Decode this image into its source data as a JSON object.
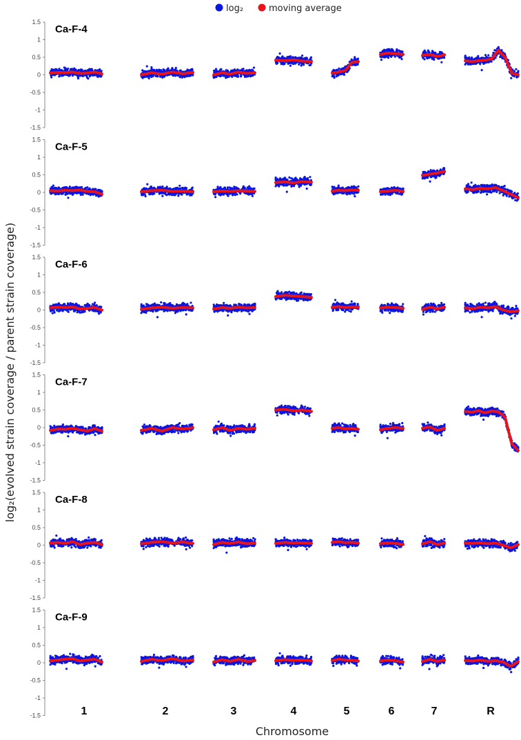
{
  "chart_data": {
    "type": "scatter",
    "xlabel": "Chromosome",
    "ylabel": "log₂(evolved strain coverage / parent strain coverage)",
    "ylim": [
      -1.5,
      1.5
    ],
    "yticks": [
      -1.5,
      -1,
      -0.5,
      0,
      0.5,
      1,
      1.5
    ],
    "yticklabels": [
      "-1.5",
      "-1",
      "-0.5",
      "0",
      "0.5",
      "1",
      "1.5"
    ],
    "grid": false,
    "legend_position": "top",
    "legend": [
      {
        "name": "log₂",
        "color": "#0b16e0"
      },
      {
        "name": "moving average",
        "color": "#e8141b"
      }
    ],
    "chromosomes": [
      "1",
      "2",
      "3",
      "4",
      "5",
      "6",
      "7",
      "R"
    ],
    "panels": [
      {
        "title": "Ca-F-4",
        "chromosomes": [
          {
            "chr": "1",
            "avg": [
              0.05,
              0.07,
              0.06,
              0.08,
              0.04,
              0.05,
              0.08,
              0.03
            ]
          },
          {
            "chr": "2",
            "avg": [
              0.0,
              0.06,
              0.02,
              0.08,
              0.03,
              0.07
            ]
          },
          {
            "chr": "3",
            "avg": [
              0.0,
              0.06,
              0.02,
              0.08,
              0.04,
              0.06
            ]
          },
          {
            "chr": "4",
            "avg": [
              0.42,
              0.4,
              0.43,
              0.39,
              0.38
            ]
          },
          {
            "chr": "5",
            "avg": [
              0.05,
              0.08,
              0.12,
              0.35,
              0.38
            ]
          },
          {
            "chr": "6",
            "avg": [
              0.58,
              0.62,
              0.6,
              0.58
            ]
          },
          {
            "chr": "7",
            "avg": [
              0.55,
              0.58,
              0.52,
              0.57
            ]
          },
          {
            "chr": "R",
            "avg": [
              0.4,
              0.38,
              0.4,
              0.42,
              0.45,
              0.7,
              0.5,
              0.05,
              0.0
            ]
          }
        ]
      },
      {
        "title": "Ca-F-5",
        "chromosomes": [
          {
            "chr": "1",
            "avg": [
              0.05,
              0.04,
              0.06,
              0.05,
              0.07,
              0.03,
              0.02,
              -0.05
            ]
          },
          {
            "chr": "2",
            "avg": [
              0.02,
              0.05,
              0.06,
              0.03,
              0.04,
              0.02
            ]
          },
          {
            "chr": "3",
            "avg": [
              0.02,
              0.04,
              0.03,
              0.05,
              0.04,
              0.03
            ]
          },
          {
            "chr": "4",
            "avg": [
              0.28,
              0.3,
              0.27,
              0.31,
              0.29
            ]
          },
          {
            "chr": "5",
            "avg": [
              0.04,
              0.06,
              0.05,
              0.07,
              0.06
            ]
          },
          {
            "chr": "6",
            "avg": [
              0.02,
              0.04,
              0.06,
              0.03
            ]
          },
          {
            "chr": "7",
            "avg": [
              0.48,
              0.52,
              0.55,
              0.6
            ]
          },
          {
            "chr": "R",
            "avg": [
              0.1,
              0.08,
              0.12,
              0.1,
              0.14,
              0.05,
              -0.05,
              -0.15
            ]
          }
        ]
      },
      {
        "title": "Ca-F-6",
        "chromosomes": [
          {
            "chr": "1",
            "avg": [
              0.06,
              0.08,
              0.07,
              0.09,
              0.03,
              0.05,
              0.07,
              0.0
            ]
          },
          {
            "chr": "2",
            "avg": [
              0.02,
              0.06,
              0.08,
              0.05,
              0.07,
              0.06
            ]
          },
          {
            "chr": "3",
            "avg": [
              0.03,
              0.07,
              0.05,
              0.08,
              0.06,
              0.07
            ]
          },
          {
            "chr": "4",
            "avg": [
              0.38,
              0.42,
              0.4,
              0.38,
              0.36
            ]
          },
          {
            "chr": "5",
            "avg": [
              0.08,
              0.1,
              0.07,
              0.09,
              0.08
            ]
          },
          {
            "chr": "6",
            "avg": [
              0.06,
              0.08,
              0.07,
              0.05
            ]
          },
          {
            "chr": "7",
            "avg": [
              0.02,
              0.08,
              0.04,
              0.08
            ]
          },
          {
            "chr": "R",
            "avg": [
              0.06,
              0.04,
              0.08,
              0.06,
              0.1,
              0.0,
              -0.05,
              -0.02
            ]
          }
        ]
      },
      {
        "title": "Ca-F-7",
        "chromosomes": [
          {
            "chr": "1",
            "avg": [
              -0.08,
              -0.04,
              -0.05,
              -0.02,
              -0.06,
              -0.1,
              -0.03,
              -0.1
            ]
          },
          {
            "chr": "2",
            "avg": [
              -0.08,
              -0.02,
              -0.1,
              0.0,
              -0.04,
              0.0
            ]
          },
          {
            "chr": "3",
            "avg": [
              -0.06,
              0.0,
              -0.08,
              -0.02,
              -0.05,
              -0.02
            ]
          },
          {
            "chr": "4",
            "avg": [
              0.5,
              0.52,
              0.48,
              0.5,
              0.46
            ]
          },
          {
            "chr": "5",
            "avg": [
              -0.02,
              0.0,
              -0.04,
              -0.02,
              -0.05
            ]
          },
          {
            "chr": "6",
            "avg": [
              -0.06,
              -0.02,
              0.0,
              -0.02
            ]
          },
          {
            "chr": "7",
            "avg": [
              -0.02,
              0.02,
              -0.08,
              -0.02
            ]
          },
          {
            "chr": "R",
            "avg": [
              0.46,
              0.44,
              0.48,
              0.42,
              0.47,
              0.45,
              0.3,
              -0.45,
              -0.65
            ]
          }
        ]
      },
      {
        "title": "Ca-F-8",
        "chromosomes": [
          {
            "chr": "1",
            "avg": [
              0.06,
              0.08,
              0.05,
              0.1,
              0.02,
              0.06,
              0.08,
              0.02
            ]
          },
          {
            "chr": "2",
            "avg": [
              0.04,
              0.08,
              0.1,
              0.06,
              0.09,
              0.05
            ]
          },
          {
            "chr": "3",
            "avg": [
              0.02,
              0.08,
              0.05,
              0.09,
              0.04,
              0.06
            ]
          },
          {
            "chr": "4",
            "avg": [
              0.05,
              0.08,
              0.06,
              0.07,
              0.05
            ]
          },
          {
            "chr": "5",
            "avg": [
              0.08,
              0.1,
              0.07,
              0.08,
              0.06
            ]
          },
          {
            "chr": "6",
            "avg": [
              0.04,
              0.07,
              0.05,
              0.02
            ]
          },
          {
            "chr": "7",
            "avg": [
              0.04,
              0.1,
              0.02,
              0.06
            ]
          },
          {
            "chr": "R",
            "avg": [
              0.06,
              0.05,
              0.07,
              0.04,
              0.06,
              0.0,
              -0.08,
              0.02
            ]
          }
        ]
      },
      {
        "title": "Ca-F-9",
        "chromosomes": [
          {
            "chr": "1",
            "avg": [
              0.05,
              0.08,
              0.1,
              0.12,
              0.05,
              0.08,
              0.1,
              0.02
            ]
          },
          {
            "chr": "2",
            "avg": [
              0.04,
              0.1,
              0.06,
              0.12,
              0.05,
              0.08
            ]
          },
          {
            "chr": "3",
            "avg": [
              0.02,
              0.09,
              0.04,
              0.1,
              0.04,
              0.06
            ]
          },
          {
            "chr": "4",
            "avg": [
              0.06,
              0.09,
              0.07,
              0.08,
              0.05
            ]
          },
          {
            "chr": "5",
            "avg": [
              0.06,
              0.1,
              0.08,
              0.07,
              0.05
            ]
          },
          {
            "chr": "6",
            "avg": [
              0.05,
              0.08,
              0.06,
              0.02
            ]
          },
          {
            "chr": "7",
            "avg": [
              0.04,
              0.1,
              0.04,
              0.08
            ]
          },
          {
            "chr": "R",
            "avg": [
              0.06,
              0.05,
              0.08,
              0.04,
              0.06,
              0.02,
              -0.1,
              0.04
            ]
          }
        ]
      }
    ]
  }
}
